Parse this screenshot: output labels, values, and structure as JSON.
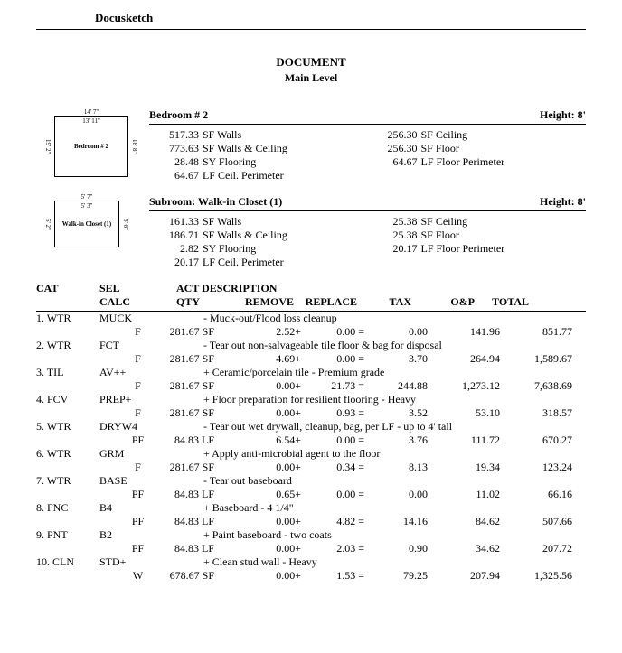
{
  "company": "Docusketch",
  "title": "DOCUMENT",
  "subtitle": "Main Level",
  "rooms": [
    {
      "name": "Bedroom # 2",
      "height": "Height: 8'",
      "sketch": {
        "dim_top": "14' 7\"",
        "dim_top2": "13' 11\"",
        "dim_left": "19' 2\"",
        "dim_right": "18' 8\"",
        "label": "Bedroom # 2"
      },
      "left": [
        {
          "v": "517.33",
          "l": "SF Walls"
        },
        {
          "v": "773.63",
          "l": "SF Walls & Ceiling"
        },
        {
          "v": "28.48",
          "l": "SY Flooring"
        },
        {
          "v": "64.67",
          "l": "LF Ceil. Perimeter"
        }
      ],
      "right": [
        {
          "v": "256.30",
          "l": "SF Ceiling"
        },
        {
          "v": "256.30",
          "l": "SF Floor"
        },
        {
          "v": "64.67",
          "l": "LF Floor Perimeter"
        }
      ]
    },
    {
      "name": "Subroom:  Walk-in Closet (1)",
      "height": "Height: 8'",
      "sketch": {
        "dim_top": "5' 7\"",
        "dim_top2": "5' 3\"",
        "dim_left": "5' 2\"",
        "dim_right": "5' 6\"",
        "label": "Walk-in Closet (1)",
        "small": true
      },
      "left": [
        {
          "v": "161.33",
          "l": "SF Walls"
        },
        {
          "v": "186.71",
          "l": "SF Walls & Ceiling"
        },
        {
          "v": "2.82",
          "l": "SY Flooring"
        },
        {
          "v": "20.17",
          "l": "LF Ceil. Perimeter"
        }
      ],
      "right": [
        {
          "v": "25.38",
          "l": "SF Ceiling"
        },
        {
          "v": "25.38",
          "l": "SF Floor"
        },
        {
          "v": "20.17",
          "l": "LF Floor Perimeter"
        }
      ]
    }
  ],
  "headers": {
    "cat": "CAT",
    "sel": "SEL",
    "act": "ACT DESCRIPTION",
    "calc": "CALC",
    "qty": "QTY",
    "remove": "REMOVE",
    "replace": "REPLACE",
    "tax": "TAX",
    "op": "O&P",
    "total": "TOTAL"
  },
  "items": [
    {
      "n": "1.",
      "cat": "WTR",
      "sel": "MUCK",
      "desc": "- Muck-out/Flood loss cleanup",
      "calc": "F",
      "qty": "281.67 SF",
      "rem": "2.52+",
      "rep": "0.00 =",
      "tax": "0.00",
      "op": "141.96",
      "tot": "851.77"
    },
    {
      "n": "2.",
      "cat": "WTR",
      "sel": "FCT",
      "desc": "- Tear out non-salvageable tile floor & bag for disposal",
      "calc": "F",
      "qty": "281.67 SF",
      "rem": "4.69+",
      "rep": "0.00 =",
      "tax": "3.70",
      "op": "264.94",
      "tot": "1,589.67"
    },
    {
      "n": "3.",
      "cat": "TIL",
      "sel": "AV++",
      "desc": "+ Ceramic/porcelain tile - Premium grade",
      "calc": "F",
      "qty": "281.67 SF",
      "rem": "0.00+",
      "rep": "21.73 =",
      "tax": "244.88",
      "op": "1,273.12",
      "tot": "7,638.69"
    },
    {
      "n": "4.",
      "cat": "FCV",
      "sel": "PREP+",
      "desc": "+ Floor preparation for resilient flooring - Heavy",
      "calc": "F",
      "qty": "281.67 SF",
      "rem": "0.00+",
      "rep": "0.93 =",
      "tax": "3.52",
      "op": "53.10",
      "tot": "318.57"
    },
    {
      "n": "5.",
      "cat": "WTR",
      "sel": "DRYW4",
      "desc": "- Tear out wet drywall, cleanup, bag, per LF - up to 4' tall",
      "calc": "PF",
      "qty": "84.83 LF",
      "rem": "6.54+",
      "rep": "0.00 =",
      "tax": "3.76",
      "op": "111.72",
      "tot": "670.27"
    },
    {
      "n": "6.",
      "cat": "WTR",
      "sel": "GRM",
      "desc": "+ Apply anti-microbial agent to the floor",
      "calc": "F",
      "qty": "281.67 SF",
      "rem": "0.00+",
      "rep": "0.34 =",
      "tax": "8.13",
      "op": "19.34",
      "tot": "123.24"
    },
    {
      "n": "7.",
      "cat": "WTR",
      "sel": "BASE",
      "desc": "- Tear out baseboard",
      "calc": "PF",
      "qty": "84.83 LF",
      "rem": "0.65+",
      "rep": "0.00 =",
      "tax": "0.00",
      "op": "11.02",
      "tot": "66.16"
    },
    {
      "n": "8.",
      "cat": "FNC",
      "sel": "B4",
      "desc": "+ Baseboard - 4 1/4\"",
      "calc": "PF",
      "qty": "84.83 LF",
      "rem": "0.00+",
      "rep": "4.82 =",
      "tax": "14.16",
      "op": "84.62",
      "tot": "507.66"
    },
    {
      "n": "9.",
      "cat": "PNT",
      "sel": "B2",
      "desc": "+ Paint baseboard - two coats",
      "calc": "PF",
      "qty": "84.83 LF",
      "rem": "0.00+",
      "rep": "2.03 =",
      "tax": "0.90",
      "op": "34.62",
      "tot": "207.72"
    },
    {
      "n": "10.",
      "cat": "CLN",
      "sel": "STD+",
      "desc": "+ Clean stud wall - Heavy",
      "calc": "W",
      "qty": "678.67 SF",
      "rem": "0.00+",
      "rep": "1.53 =",
      "tax": "79.25",
      "op": "207.94",
      "tot": "1,325.56"
    }
  ]
}
